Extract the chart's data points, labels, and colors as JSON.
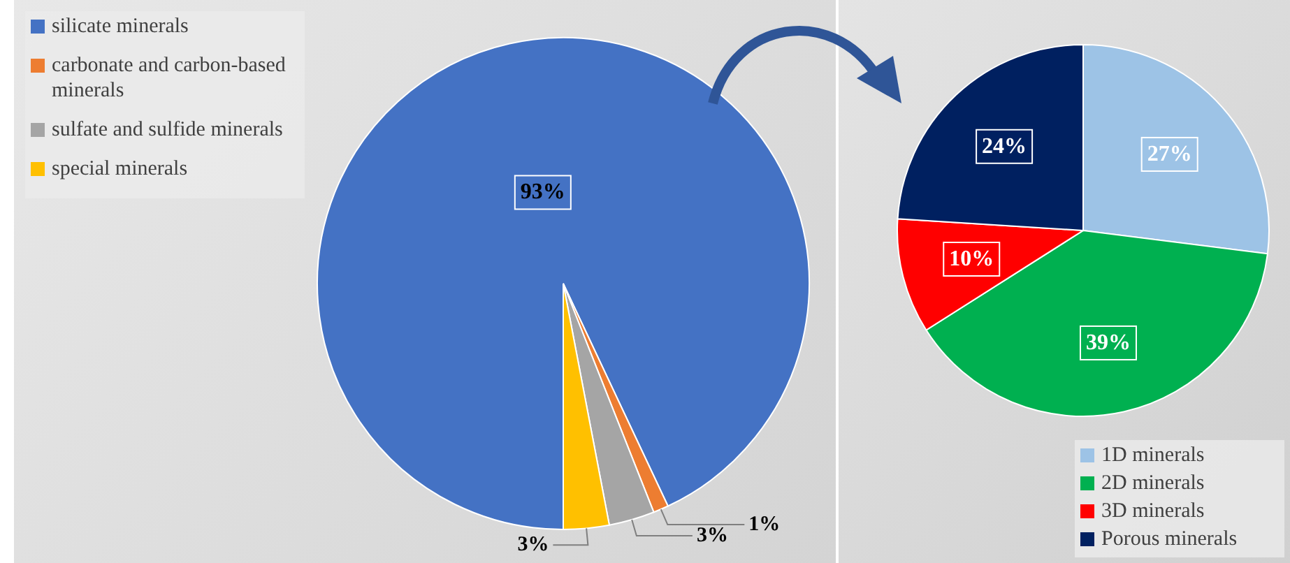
{
  "chart_data": [
    {
      "type": "pie",
      "categories": [
        "silicate minerals",
        "carbonate and carbon-based minerals",
        "sulfate and sulfide minerals",
        "special minerals"
      ],
      "values": [
        93,
        1,
        3,
        3
      ],
      "colors": [
        "#4472c4",
        "#ed7d31",
        "#a5a5a5",
        "#ffc000"
      ],
      "value_labels": [
        "93%",
        "1%",
        "3%",
        "3%"
      ],
      "legend": "top left"
    },
    {
      "type": "pie",
      "categories": [
        "1D minerals",
        "2D minerals",
        "3D minerals",
        "Porous minerals"
      ],
      "values": [
        27,
        39,
        10,
        24
      ],
      "colors": [
        "#9dc3e6",
        "#00b050",
        "#ff0000",
        "#002060"
      ],
      "value_labels": [
        "27%",
        "39%",
        "10%",
        "24%"
      ],
      "legend": "bottom right"
    }
  ]
}
